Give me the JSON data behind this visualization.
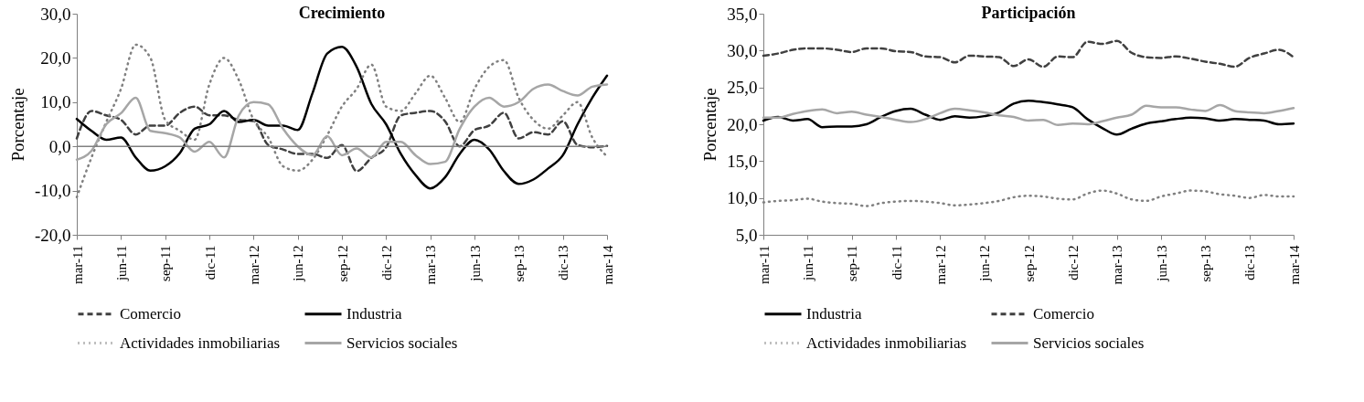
{
  "chart_data": [
    {
      "type": "line",
      "title": "Crecimiento",
      "ylabel": "Porcentaje",
      "categories": [
        "mar-11",
        null,
        null,
        "jun-11",
        null,
        null,
        "sep-11",
        null,
        null,
        "dic-11",
        null,
        null,
        "mar-12",
        null,
        null,
        "jun-12",
        null,
        null,
        "sep-12",
        null,
        null,
        "dic-12",
        null,
        null,
        "mar-13",
        null,
        null,
        "jun-13",
        null,
        null,
        "sep-13",
        null,
        null,
        "dic-13",
        null,
        null,
        "mar-14"
      ],
      "ylim": [
        -20,
        30
      ],
      "yticks": [
        {
          "value": -20,
          "label": "-20,0"
        },
        {
          "value": -10,
          "label": "-10,0"
        },
        {
          "value": 0,
          "label": "0,0"
        },
        {
          "value": 10,
          "label": "10,0"
        },
        {
          "value": 20,
          "label": "20,0"
        },
        {
          "value": 30,
          "label": "30,0"
        }
      ],
      "grid": false,
      "legend": "bottom",
      "ref_lines": [
        {
          "axis": "y",
          "value": 0,
          "color": "#808080"
        }
      ],
      "series": [
        {
          "name": "Comercio",
          "color": "#404040",
          "line_style": "dashed",
          "values": [
            1.8,
            8,
            7,
            6,
            2.7,
            4.7,
            4.7,
            7.6,
            9,
            7,
            7,
            6,
            5.7,
            0.3,
            -0.7,
            -1.7,
            -1.7,
            -2.6,
            0.3,
            -5.6,
            -2.6,
            -0.2,
            7,
            7.6,
            8,
            5.7,
            0,
            3.7,
            4.7,
            7.6,
            1.8,
            3.2,
            2.7,
            5.7,
            0.3,
            -0.2,
            0.1
          ]
        },
        {
          "name": "Industria",
          "color": "#000000",
          "line_style": "solid",
          "values": [
            6.2,
            3.5,
            1.5,
            2,
            -2.5,
            -5.5,
            -4.5,
            -1.5,
            4,
            5,
            8,
            5.5,
            6,
            4.7,
            4.7,
            3.7,
            12,
            21,
            22.5,
            18,
            9.6,
            5,
            -1.7,
            -6.5,
            -9.5,
            -7,
            -1.7,
            1.5,
            -0.7,
            -5.6,
            -8.5,
            -7.5,
            -5,
            -2,
            5,
            11,
            16
          ]
        },
        {
          "name": "Actividades inmobiliarias",
          "color": "#808080",
          "line_style": "dotted",
          "values": [
            -11.5,
            -2.5,
            5.5,
            13,
            23,
            20,
            6,
            3.5,
            1.5,
            14,
            20,
            15,
            6,
            2,
            -4.5,
            -5.5,
            -3,
            2.5,
            9,
            13,
            18.5,
            9,
            8,
            12,
            16,
            11,
            5.5,
            13,
            18,
            19.5,
            11,
            6,
            4,
            7,
            10,
            2,
            -2.3
          ]
        },
        {
          "name": "Servicios sociales",
          "color": "#a6a6a6",
          "line_style": "solid",
          "values": [
            -3,
            -1,
            5,
            7.5,
            11,
            3.5,
            3,
            2,
            -1.2,
            1,
            -2.5,
            7,
            10,
            9.5,
            4,
            0,
            -2,
            2.3,
            -2,
            -0.5,
            -2.5,
            1,
            1,
            -2,
            -4,
            -3.5,
            4,
            9,
            11,
            9,
            10,
            13,
            14,
            12.5,
            11.5,
            13.5,
            14
          ]
        }
      ]
    },
    {
      "type": "line",
      "title": "Participación",
      "ylabel": "Porcentaje",
      "categories": [
        "mar-11",
        null,
        null,
        "jun-11",
        null,
        null,
        "sep-11",
        null,
        null,
        "dic-11",
        null,
        null,
        "mar-12",
        null,
        null,
        "jun-12",
        null,
        null,
        "sep-12",
        null,
        null,
        "dic-12",
        null,
        null,
        "mar-13",
        null,
        null,
        "jun-13",
        null,
        null,
        "sep-13",
        null,
        null,
        "dic-13",
        null,
        null,
        "mar-14"
      ],
      "ylim": [
        5,
        35
      ],
      "yticks": [
        {
          "value": 5,
          "label": "5,0"
        },
        {
          "value": 10,
          "label": "10,0"
        },
        {
          "value": 15,
          "label": "15,0"
        },
        {
          "value": 20,
          "label": "20,0"
        },
        {
          "value": 25,
          "label": "25,0"
        },
        {
          "value": 30,
          "label": "30,0"
        },
        {
          "value": 35,
          "label": "35,0"
        }
      ],
      "grid": false,
      "legend": "bottom",
      "series": [
        {
          "name": "Industria",
          "color": "#000000",
          "line_style": "solid",
          "values": [
            20.5,
            21,
            20.5,
            20.7,
            19.6,
            19.7,
            19.7,
            20,
            21,
            21.8,
            22.1,
            21.3,
            20.6,
            21.1,
            20.9,
            21.1,
            21.6,
            22.8,
            23.2,
            23,
            22.7,
            22.3,
            20.7,
            19.5,
            18.6,
            19.4,
            20.1,
            20.4,
            20.7,
            20.9,
            20.8,
            20.5,
            20.7,
            20.6,
            20.5,
            20,
            20.1
          ]
        },
        {
          "name": "Comercio",
          "color": "#404040",
          "line_style": "dashed",
          "values": [
            29.3,
            29.6,
            30.1,
            30.3,
            30.3,
            30.1,
            29.8,
            30.3,
            30.3,
            29.9,
            29.8,
            29.2,
            29.1,
            28.4,
            29.3,
            29.2,
            29.1,
            27.9,
            28.8,
            27.8,
            29.2,
            29.1,
            31.2,
            30.9,
            31.3,
            29.7,
            29.1,
            29,
            29.2,
            28.9,
            28.5,
            28.2,
            27.8,
            29,
            29.6,
            30.1,
            29.1
          ]
        },
        {
          "name": "Actividades inmobiliarias",
          "color": "#808080",
          "line_style": "dotted",
          "values": [
            9.4,
            9.6,
            9.7,
            9.9,
            9.5,
            9.3,
            9.2,
            8.9,
            9.3,
            9.5,
            9.6,
            9.5,
            9.3,
            9,
            9.1,
            9.3,
            9.6,
            10.1,
            10.3,
            10.2,
            9.9,
            9.8,
            10.6,
            11,
            10.6,
            9.8,
            9.6,
            10.2,
            10.6,
            11,
            10.9,
            10.5,
            10.3,
            10,
            10.4,
            10.2,
            10.2
          ]
        },
        {
          "name": "Servicios sociales",
          "color": "#a6a6a6",
          "line_style": "solid",
          "values": [
            20.9,
            20.9,
            21.4,
            21.8,
            22,
            21.5,
            21.7,
            21.3,
            21,
            20.6,
            20.3,
            20.7,
            21.5,
            22.1,
            21.9,
            21.6,
            21.2,
            21,
            20.5,
            20.6,
            19.9,
            20.1,
            20,
            20.4,
            20.9,
            21.3,
            22.5,
            22.3,
            22.3,
            22,
            21.8,
            22.6,
            21.8,
            21.6,
            21.5,
            21.8,
            22.2
          ]
        }
      ]
    }
  ]
}
